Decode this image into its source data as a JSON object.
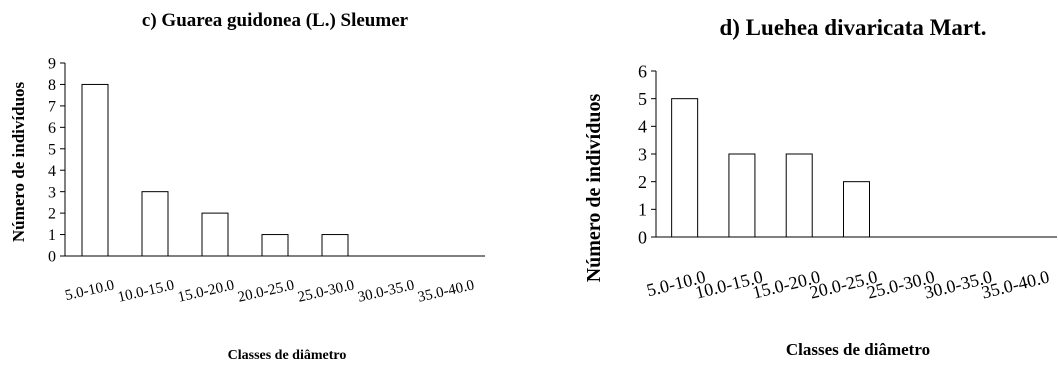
{
  "chart_data": [
    {
      "type": "bar",
      "title": "c) Guarea guidonea (L.) Sleumer",
      "xlabel": "Classes de diâmetro",
      "ylabel": "Número de indivíduos",
      "categories": [
        "5.0-10.0",
        "10.0-15.0",
        "15.0-20.0",
        "20.0-25.0",
        "25.0-30.0",
        "30.0-35.0",
        "35.0-40.0"
      ],
      "values": [
        8,
        3,
        2,
        1,
        1,
        0,
        0
      ],
      "ylim": [
        0,
        9
      ],
      "yticks": [
        "0",
        "1",
        "2",
        "3",
        "4",
        "5",
        "6",
        "7",
        "8",
        "9"
      ],
      "grid": false,
      "bar_fill": "#ffffff",
      "bar_stroke": "#000000"
    },
    {
      "type": "bar",
      "title": "d) Luehea divaricata Mart.",
      "xlabel": "Classes de diâmetro",
      "ylabel": "Número de indivíduos",
      "categories": [
        "5.0-10.0",
        "10.0-15.0",
        "15.0-20.0",
        "20.0-25.0",
        "25.0-30.0",
        "30.0-35.0",
        "35.0-40.0"
      ],
      "values": [
        5,
        3,
        3,
        2,
        0,
        0,
        0
      ],
      "ylim": [
        0,
        6
      ],
      "yticks": [
        "0",
        "1",
        "2",
        "3",
        "4",
        "5",
        "6"
      ],
      "grid": false,
      "bar_fill": "#ffffff",
      "bar_stroke": "#000000"
    }
  ]
}
